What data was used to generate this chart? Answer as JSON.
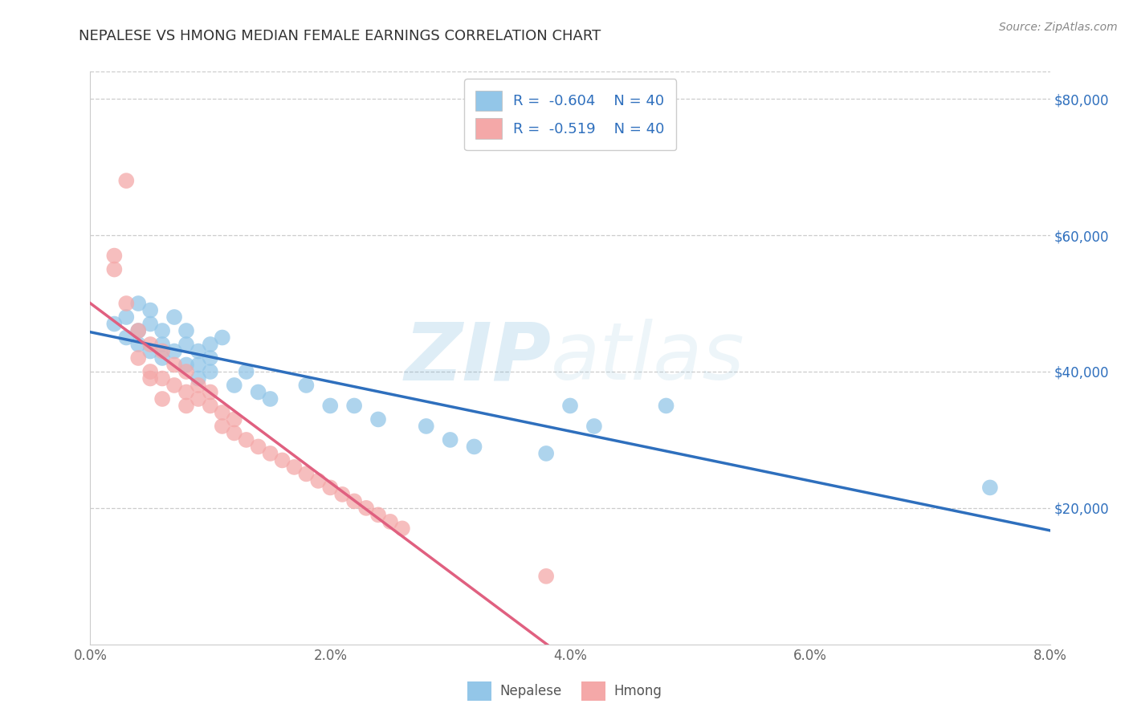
{
  "title": "NEPALESE VS HMONG MEDIAN FEMALE EARNINGS CORRELATION CHART",
  "source": "Source: ZipAtlas.com",
  "x_min": 0.0,
  "x_max": 0.08,
  "y_min": 0,
  "y_max": 84000,
  "nepalese_color": "#93c6e8",
  "hmong_color": "#f4a8a8",
  "nepalese_line_color": "#2e6fbd",
  "hmong_line_color": "#e06080",
  "nepalese_R": -0.604,
  "nepalese_N": 40,
  "hmong_R": -0.519,
  "hmong_N": 40,
  "legend_text_color": "#2e6fbd",
  "watermark_color_zip": "#6baed6",
  "watermark_color_atlas": "#9ecae1",
  "nepalese_x": [
    0.002,
    0.003,
    0.003,
    0.004,
    0.004,
    0.004,
    0.005,
    0.005,
    0.005,
    0.006,
    0.006,
    0.006,
    0.007,
    0.007,
    0.008,
    0.008,
    0.008,
    0.009,
    0.009,
    0.009,
    0.01,
    0.01,
    0.01,
    0.011,
    0.012,
    0.013,
    0.014,
    0.015,
    0.018,
    0.02,
    0.022,
    0.024,
    0.028,
    0.03,
    0.032,
    0.038,
    0.04,
    0.042,
    0.048,
    0.075
  ],
  "nepalese_y": [
    47000,
    48000,
    45000,
    50000,
    46000,
    44000,
    49000,
    43000,
    47000,
    46000,
    44000,
    42000,
    48000,
    43000,
    46000,
    44000,
    41000,
    43000,
    41000,
    39000,
    44000,
    42000,
    40000,
    45000,
    38000,
    40000,
    37000,
    36000,
    38000,
    35000,
    35000,
    33000,
    32000,
    30000,
    29000,
    28000,
    35000,
    32000,
    35000,
    23000
  ],
  "hmong_x": [
    0.002,
    0.003,
    0.004,
    0.004,
    0.005,
    0.005,
    0.006,
    0.006,
    0.007,
    0.007,
    0.008,
    0.008,
    0.008,
    0.009,
    0.009,
    0.01,
    0.01,
    0.011,
    0.011,
    0.012,
    0.012,
    0.013,
    0.014,
    0.015,
    0.016,
    0.017,
    0.018,
    0.019,
    0.02,
    0.021,
    0.022,
    0.023,
    0.024,
    0.025,
    0.026,
    0.005,
    0.006,
    0.002,
    0.003,
    0.038
  ],
  "hmong_y": [
    55000,
    68000,
    46000,
    42000,
    44000,
    40000,
    43000,
    39000,
    41000,
    38000,
    40000,
    37000,
    35000,
    38000,
    36000,
    37000,
    35000,
    34000,
    32000,
    33000,
    31000,
    30000,
    29000,
    28000,
    27000,
    26000,
    25000,
    24000,
    23000,
    22000,
    21000,
    20000,
    19000,
    18000,
    17000,
    39000,
    36000,
    57000,
    50000,
    10000
  ]
}
